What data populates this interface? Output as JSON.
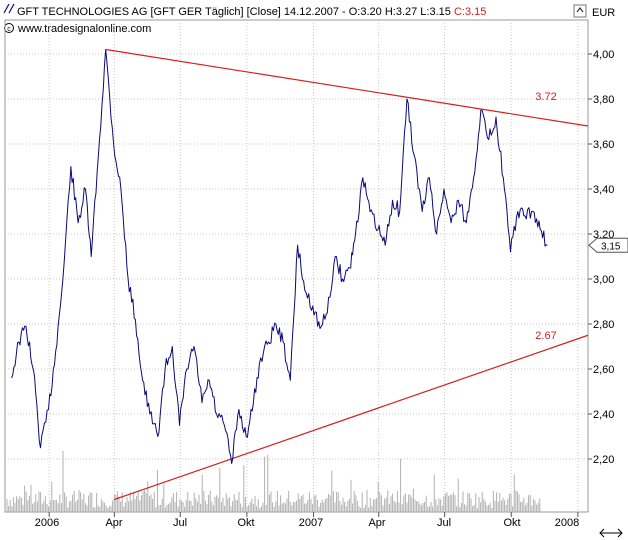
{
  "header": {
    "title_prefix": "GFT TECHNOLOGIES AG [GFT GER  Täglich] [Close] 14.12.2007 - O:3.20 H:3.27 L:3.15 ",
    "close_label": "C:3.15",
    "watermark": "www.tradesignalonline.com",
    "currency": "EUR"
  },
  "colors": {
    "price_line": "#0a0a7a",
    "trendline": "#d42020",
    "annotation": "#d42020",
    "grid": "#c8c8c8",
    "volume": "#b0b0b0",
    "background": "#ffffff"
  },
  "chart_data": {
    "type": "line",
    "x_tick_labels": [
      "2006",
      "Apr",
      "Jul",
      "Okt",
      "2007",
      "Apr",
      "Jul",
      "Okt",
      "2008"
    ],
    "y_tick_labels": [
      "4,00",
      "3,80",
      "3,60",
      "3,40",
      "3,20",
      "3,00",
      "2,80",
      "2,60",
      "2,40",
      "2,20"
    ],
    "ylim": [
      2.05,
      4.1
    ],
    "x_range": [
      "2005-11-01",
      "2008-01-15"
    ],
    "last_value_label": "3,15",
    "series": [
      {
        "values": [
          [
            "2005-11-10",
            2.56
          ],
          [
            "2005-11-20",
            2.72
          ],
          [
            "2005-11-30",
            2.79
          ],
          [
            "2005-12-10",
            2.6
          ],
          [
            "2005-12-20",
            2.25
          ],
          [
            "2005-12-31",
            2.42
          ],
          [
            "2006-01-10",
            2.68
          ],
          [
            "2006-01-20",
            3.0
          ],
          [
            "2006-01-31",
            3.5
          ],
          [
            "2006-02-10",
            3.25
          ],
          [
            "2006-02-20",
            3.4
          ],
          [
            "2006-02-28",
            3.1
          ],
          [
            "2006-03-10",
            3.55
          ],
          [
            "2006-03-20",
            4.02
          ],
          [
            "2006-03-31",
            3.6
          ],
          [
            "2006-04-10",
            3.4
          ],
          [
            "2006-04-20",
            3.0
          ],
          [
            "2006-04-30",
            2.82
          ],
          [
            "2006-05-10",
            2.55
          ],
          [
            "2006-05-20",
            2.4
          ],
          [
            "2006-05-31",
            2.3
          ],
          [
            "2006-06-10",
            2.6
          ],
          [
            "2006-06-20",
            2.7
          ],
          [
            "2006-06-30",
            2.35
          ],
          [
            "2006-07-10",
            2.6
          ],
          [
            "2006-07-20",
            2.7
          ],
          [
            "2006-07-31",
            2.45
          ],
          [
            "2006-08-10",
            2.55
          ],
          [
            "2006-08-20",
            2.4
          ],
          [
            "2006-08-31",
            2.35
          ],
          [
            "2006-09-10",
            2.18
          ],
          [
            "2006-09-20",
            2.42
          ],
          [
            "2006-09-30",
            2.3
          ],
          [
            "2006-10-10",
            2.45
          ],
          [
            "2006-10-20",
            2.65
          ],
          [
            "2006-10-31",
            2.72
          ],
          [
            "2006-11-10",
            2.8
          ],
          [
            "2006-11-20",
            2.72
          ],
          [
            "2006-11-30",
            2.55
          ],
          [
            "2006-12-10",
            3.15
          ],
          [
            "2006-12-20",
            2.95
          ],
          [
            "2006-12-31",
            2.88
          ],
          [
            "2007-01-10",
            2.78
          ],
          [
            "2007-01-20",
            2.85
          ],
          [
            "2007-01-31",
            3.1
          ],
          [
            "2007-02-10",
            3.0
          ],
          [
            "2007-02-20",
            3.05
          ],
          [
            "2007-02-28",
            3.2
          ],
          [
            "2007-03-10",
            3.45
          ],
          [
            "2007-03-20",
            3.3
          ],
          [
            "2007-03-31",
            3.22
          ],
          [
            "2007-04-10",
            3.15
          ],
          [
            "2007-04-20",
            3.35
          ],
          [
            "2007-04-30",
            3.3
          ],
          [
            "2007-05-10",
            3.8
          ],
          [
            "2007-05-20",
            3.55
          ],
          [
            "2007-05-31",
            3.3
          ],
          [
            "2007-06-10",
            3.45
          ],
          [
            "2007-06-20",
            3.2
          ],
          [
            "2007-06-30",
            3.4
          ],
          [
            "2007-07-10",
            3.25
          ],
          [
            "2007-07-20",
            3.35
          ],
          [
            "2007-07-31",
            3.25
          ],
          [
            "2007-08-10",
            3.45
          ],
          [
            "2007-08-20",
            3.75
          ],
          [
            "2007-08-31",
            3.62
          ],
          [
            "2007-09-10",
            3.72
          ],
          [
            "2007-09-20",
            3.45
          ],
          [
            "2007-09-30",
            3.12
          ],
          [
            "2007-10-10",
            3.3
          ],
          [
            "2007-10-20",
            3.28
          ],
          [
            "2007-10-31",
            3.3
          ],
          [
            "2007-11-10",
            3.22
          ],
          [
            "2007-11-20",
            3.15
          ]
        ]
      }
    ],
    "trendlines": [
      {
        "label": "3.72",
        "from": [
          "2006-03-20",
          4.02
        ],
        "to": [
          "2008-01-15",
          3.68
        ]
      },
      {
        "label": "2.67",
        "from": [
          "2006-04-01",
          2.02
        ],
        "to": [
          "2008-01-15",
          2.75
        ]
      }
    ],
    "grid": true,
    "volume_bars": true
  }
}
